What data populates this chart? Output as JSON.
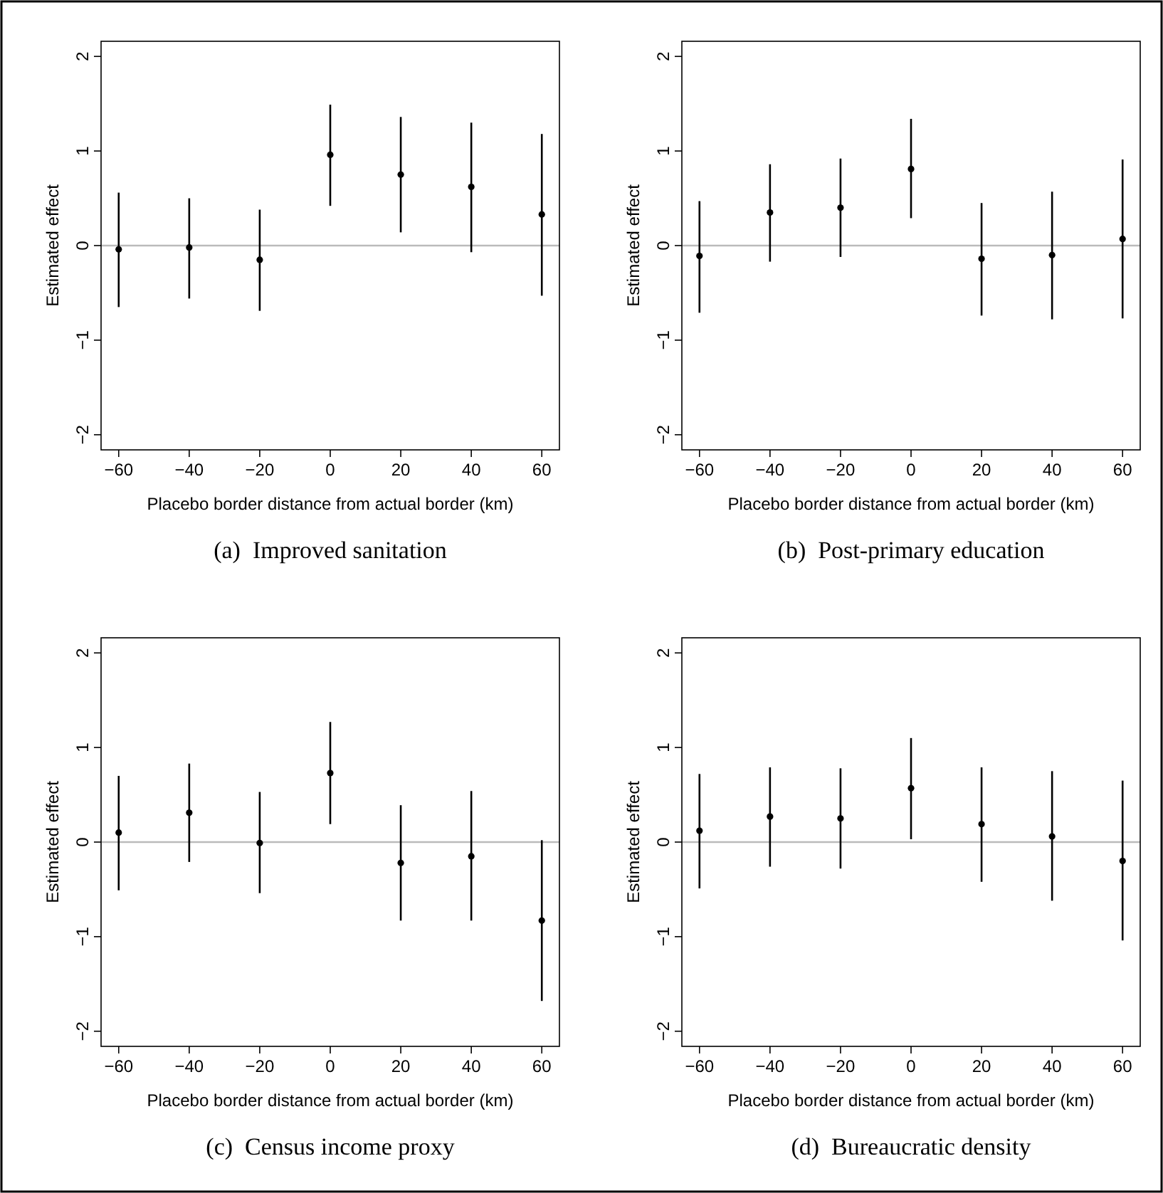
{
  "chart_data": [
    {
      "type": "scatter",
      "title": "(a)  Improved sanitation",
      "xlabel": "Placebo border distance from actual border (km)",
      "ylabel": "Estimated effect",
      "x": [
        -60,
        -40,
        -20,
        0,
        20,
        40,
        60
      ],
      "values": [
        -0.04,
        -0.02,
        -0.15,
        0.96,
        0.75,
        0.62,
        0.33
      ],
      "errors": [
        [
          -0.65,
          0.56
        ],
        [
          -0.56,
          0.5
        ],
        [
          -0.69,
          0.38
        ],
        [
          0.42,
          1.49
        ],
        [
          0.14,
          1.36
        ],
        [
          -0.07,
          1.3
        ],
        [
          -0.53,
          1.18
        ]
      ],
      "color": "#000000",
      "marker": "circle",
      "xlim": [
        -65,
        65
      ],
      "xticks": [
        -60,
        -40,
        -20,
        0,
        20,
        40,
        60
      ],
      "ylim": [
        -2.16,
        2.16
      ],
      "yticks": [
        -2,
        -1,
        0,
        1,
        2
      ],
      "ref_lines": [
        {
          "axis": "y",
          "value": 0,
          "color": "#bbbbbb"
        }
      ]
    },
    {
      "type": "scatter",
      "title": "(b)  Post-primary education",
      "xlabel": "Placebo border distance from actual border (km)",
      "ylabel": "Estimated effect",
      "x": [
        -60,
        -40,
        -20,
        0,
        20,
        40,
        60
      ],
      "values": [
        -0.11,
        0.35,
        0.4,
        0.81,
        -0.14,
        -0.1,
        0.07
      ],
      "errors": [
        [
          -0.71,
          0.47
        ],
        [
          -0.17,
          0.86
        ],
        [
          -0.12,
          0.92
        ],
        [
          0.29,
          1.34
        ],
        [
          -0.74,
          0.45
        ],
        [
          -0.78,
          0.57
        ],
        [
          -0.77,
          0.91
        ]
      ],
      "color": "#000000",
      "marker": "circle",
      "xlim": [
        -65,
        65
      ],
      "xticks": [
        -60,
        -40,
        -20,
        0,
        20,
        40,
        60
      ],
      "ylim": [
        -2.16,
        2.16
      ],
      "yticks": [
        -2,
        -1,
        0,
        1,
        2
      ],
      "ref_lines": [
        {
          "axis": "y",
          "value": 0,
          "color": "#bbbbbb"
        }
      ]
    },
    {
      "type": "scatter",
      "title": "(c)  Census income proxy",
      "xlabel": "Placebo border distance from actual border (km)",
      "ylabel": "Estimated effect",
      "x": [
        -60,
        -40,
        -20,
        0,
        20,
        40,
        60
      ],
      "values": [
        0.1,
        0.31,
        -0.01,
        0.73,
        -0.22,
        -0.15,
        -0.83
      ],
      "errors": [
        [
          -0.51,
          0.7
        ],
        [
          -0.21,
          0.83
        ],
        [
          -0.54,
          0.53
        ],
        [
          0.19,
          1.27
        ],
        [
          -0.83,
          0.39
        ],
        [
          -0.83,
          0.54
        ],
        [
          -1.68,
          0.02
        ]
      ],
      "color": "#000000",
      "marker": "circle",
      "xlim": [
        -65,
        65
      ],
      "xticks": [
        -60,
        -40,
        -20,
        0,
        20,
        40,
        60
      ],
      "ylim": [
        -2.16,
        2.16
      ],
      "yticks": [
        -2,
        -1,
        0,
        1,
        2
      ],
      "ref_lines": [
        {
          "axis": "y",
          "value": 0,
          "color": "#bbbbbb"
        }
      ]
    },
    {
      "type": "scatter",
      "title": "(d)  Bureaucratic density",
      "xlabel": "Placebo border distance from actual border (km)",
      "ylabel": "Estimated effect",
      "x": [
        -60,
        -40,
        -20,
        0,
        20,
        40,
        60
      ],
      "values": [
        0.12,
        0.27,
        0.25,
        0.57,
        0.19,
        0.06,
        -0.2
      ],
      "errors": [
        [
          -0.49,
          0.72
        ],
        [
          -0.26,
          0.79
        ],
        [
          -0.28,
          0.78
        ],
        [
          0.03,
          1.1
        ],
        [
          -0.42,
          0.79
        ],
        [
          -0.62,
          0.75
        ],
        [
          -1.04,
          0.65
        ]
      ],
      "color": "#000000",
      "marker": "circle",
      "xlim": [
        -65,
        65
      ],
      "xticks": [
        -60,
        -40,
        -20,
        0,
        20,
        40,
        60
      ],
      "ylim": [
        -2.16,
        2.16
      ],
      "yticks": [
        -2,
        -1,
        0,
        1,
        2
      ],
      "ref_lines": [
        {
          "axis": "y",
          "value": 0,
          "color": "#bbbbbb"
        }
      ]
    }
  ]
}
